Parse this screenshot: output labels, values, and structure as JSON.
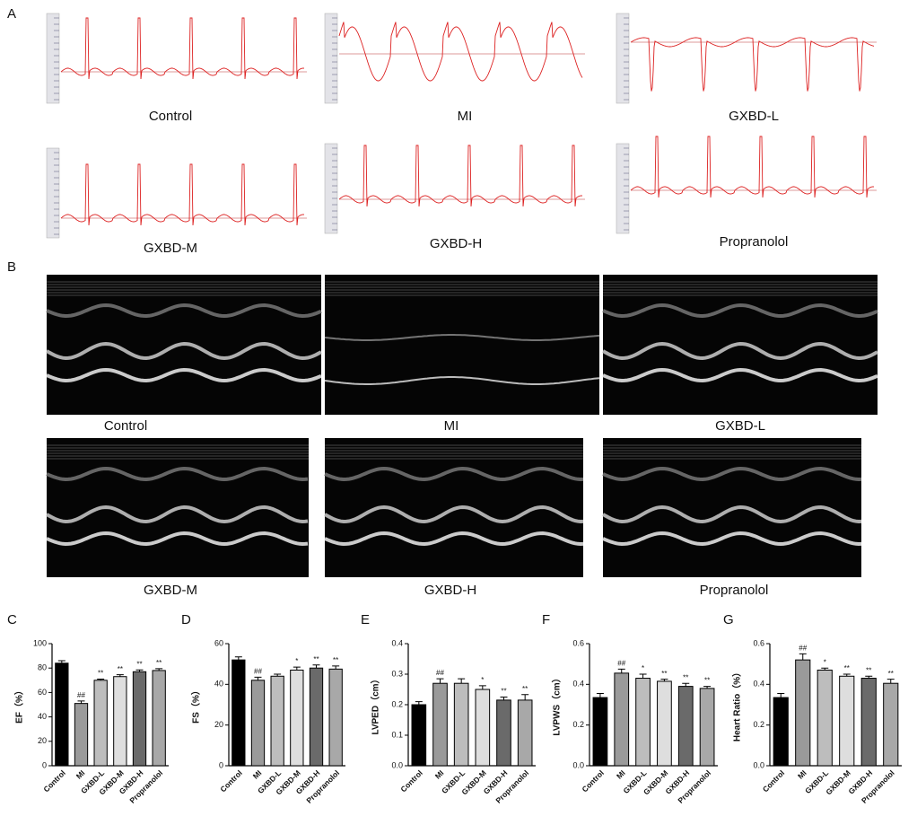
{
  "panel_labels": [
    "A",
    "B",
    "C",
    "D",
    "E",
    "F",
    "G"
  ],
  "ecg_labels": [
    "Control",
    "MI",
    "GXBD-L",
    "GXBD-M",
    "GXBD-H",
    "Propranolol"
  ],
  "echo_labels": [
    "Control",
    "MI",
    "GXBD-L",
    "GXBD-M",
    "GXBD-H",
    "Propranolol"
  ],
  "chart_data": [
    {
      "type": "bar",
      "ylabel": "EF（%）",
      "categories": [
        "Control",
        "MI",
        "GXBD-L",
        "GXBD-M",
        "GXBD-H",
        "Propranolol"
      ],
      "values": [
        84,
        51,
        70,
        73,
        77,
        78
      ],
      "errors": [
        2,
        2,
        1,
        1.5,
        1.5,
        1.5
      ],
      "annotations": [
        null,
        "##",
        "**",
        "**",
        "**",
        "**"
      ],
      "colors": [
        "#000000",
        "#9a9a9a",
        "#bdbdbd",
        "#dedede",
        "#6a6a6a",
        "#a8a8a8"
      ],
      "ylim": [
        0,
        100
      ],
      "yticks": [
        0,
        20,
        40,
        60,
        80,
        100
      ]
    },
    {
      "type": "bar",
      "ylabel": "FS（%）",
      "categories": [
        "Control",
        "MI",
        "GXBD-L",
        "GXBD-M",
        "GXBD-H",
        "Propranolol"
      ],
      "values": [
        52,
        42,
        44,
        47,
        48,
        47.5
      ],
      "errors": [
        1.5,
        1.5,
        1,
        1.5,
        1.5,
        1.5
      ],
      "annotations": [
        null,
        "##",
        null,
        "*",
        "**",
        "**"
      ],
      "colors": [
        "#000000",
        "#9a9a9a",
        "#bdbdbd",
        "#dedede",
        "#6a6a6a",
        "#a8a8a8"
      ],
      "ylim": [
        0,
        60
      ],
      "yticks": [
        0,
        20,
        40,
        60
      ]
    },
    {
      "type": "bar",
      "ylabel": "LVPED（cm）",
      "categories": [
        "Control",
        "MI",
        "GXBD-L",
        "GXBD-M",
        "GXBD-H",
        "Propranolol"
      ],
      "values": [
        0.2,
        0.27,
        0.27,
        0.25,
        0.215,
        0.215
      ],
      "errors": [
        0.01,
        0.015,
        0.015,
        0.012,
        0.01,
        0.018
      ],
      "annotations": [
        null,
        "##",
        null,
        "*",
        "**",
        "**"
      ],
      "colors": [
        "#000000",
        "#9a9a9a",
        "#bdbdbd",
        "#dedede",
        "#6a6a6a",
        "#a8a8a8"
      ],
      "ylim": [
        0,
        0.4
      ],
      "yticks": [
        {
          "value": 0,
          "label": "0.0"
        },
        0.1,
        0.2,
        0.3,
        0.4
      ]
    },
    {
      "type": "bar",
      "ylabel": "LVPWS（cm）",
      "categories": [
        "Control",
        "MI",
        "GXBD-L",
        "GXBD-M",
        "GXBD-H",
        "Propranolol"
      ],
      "values": [
        0.335,
        0.455,
        0.43,
        0.415,
        0.39,
        0.38
      ],
      "errors": [
        0.02,
        0.02,
        0.02,
        0.01,
        0.015,
        0.01
      ],
      "annotations": [
        null,
        "##",
        "*",
        "**",
        "**",
        "**"
      ],
      "colors": [
        "#000000",
        "#9a9a9a",
        "#bdbdbd",
        "#dedede",
        "#6a6a6a",
        "#a8a8a8"
      ],
      "ylim": [
        0,
        0.6
      ],
      "yticks": [
        {
          "value": 0,
          "label": "0.0"
        },
        0.2,
        0.4,
        0.6
      ]
    },
    {
      "type": "bar",
      "ylabel": "Heart Ratio（%）",
      "categories": [
        "Control",
        "MI",
        "GXBD-L",
        "GXBD-M",
        "GXBD-H",
        "Propranolol"
      ],
      "values": [
        0.335,
        0.52,
        0.47,
        0.44,
        0.43,
        0.405
      ],
      "errors": [
        0.02,
        0.03,
        0.01,
        0.01,
        0.01,
        0.02
      ],
      "annotations": [
        null,
        "##",
        "*",
        "**",
        "**",
        "**"
      ],
      "colors": [
        "#000000",
        "#9a9a9a",
        "#bdbdbd",
        "#dedede",
        "#6a6a6a",
        "#a8a8a8"
      ],
      "ylim": [
        0,
        0.6
      ],
      "yticks": [
        {
          "value": 0,
          "label": "0.0"
        },
        0.2,
        0.4,
        0.6
      ]
    }
  ]
}
